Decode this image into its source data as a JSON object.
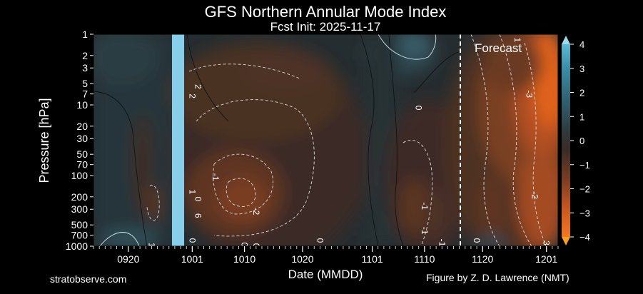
{
  "chart_data": {
    "type": "heatmap",
    "title": "GFS Northern Annular Mode Index",
    "subtitle": "Fcst Init: 2025-11-17",
    "xlabel": "Date (MMDD)",
    "ylabel": "Pressure [hPa]",
    "x_ticks": [
      "0920",
      "1001",
      "1010",
      "1020",
      "1101",
      "1110",
      "1120",
      "1201"
    ],
    "y_ticks": [
      1,
      2,
      3,
      5,
      7,
      10,
      20,
      30,
      50,
      70,
      100,
      200,
      300,
      500,
      700,
      1000
    ],
    "y_scale": "log",
    "y_range": [
      1000,
      1
    ],
    "colorbar_ticks": [
      4,
      3,
      2,
      1,
      0,
      -1,
      -2,
      -3,
      -4
    ],
    "colorbar_range": [
      -4,
      4
    ],
    "colormap": {
      "positive": "#3aa7c6",
      "neutral": "#2b2b2b",
      "negative": "#f06a24"
    },
    "highlight_band_color": "#87ceeb",
    "forecast_annotation": "Forecast",
    "contour_labels": [
      {
        "text": "1",
        "date": "1126",
        "p": 1.2
      },
      {
        "text": "2",
        "date": "1002",
        "p": 5.5
      },
      {
        "text": "2",
        "date": "1001",
        "p": 7.5
      },
      {
        "text": "0",
        "date": "1109",
        "p": 11
      },
      {
        "text": "-3",
        "date": "1128",
        "p": 7
      },
      {
        "text": "1",
        "date": "1001",
        "p": 170
      },
      {
        "text": "0",
        "date": "1002",
        "p": 215
      },
      {
        "text": "-1",
        "date": "1005",
        "p": 105
      },
      {
        "text": "6",
        "date": "1002",
        "p": 370
      },
      {
        "text": "-2",
        "date": "1012",
        "p": 320
      },
      {
        "text": "-1",
        "date": "1110",
        "p": 270
      },
      {
        "text": "-2",
        "date": "1129",
        "p": 190
      },
      {
        "text": "-1",
        "date": "1110",
        "p": 600
      },
      {
        "text": "-1",
        "date": "1113",
        "p": 890
      },
      {
        "text": "0",
        "date": "1001",
        "p": 830
      },
      {
        "text": "0",
        "date": "1023",
        "p": 830
      },
      {
        "text": "0",
        "date": "1010",
        "p": 950
      },
      {
        "text": "0",
        "date": "1012",
        "p": 980
      },
      {
        "text": "1",
        "date": "0924",
        "p": 960
      },
      {
        "text": "0",
        "date": "1119",
        "p": 830
      },
      {
        "text": "3",
        "date": "1201",
        "p": 900
      }
    ]
  },
  "footer": {
    "left": "stratobserve.com",
    "right": "Figure by Z. D. Lawrence (NMT)"
  }
}
